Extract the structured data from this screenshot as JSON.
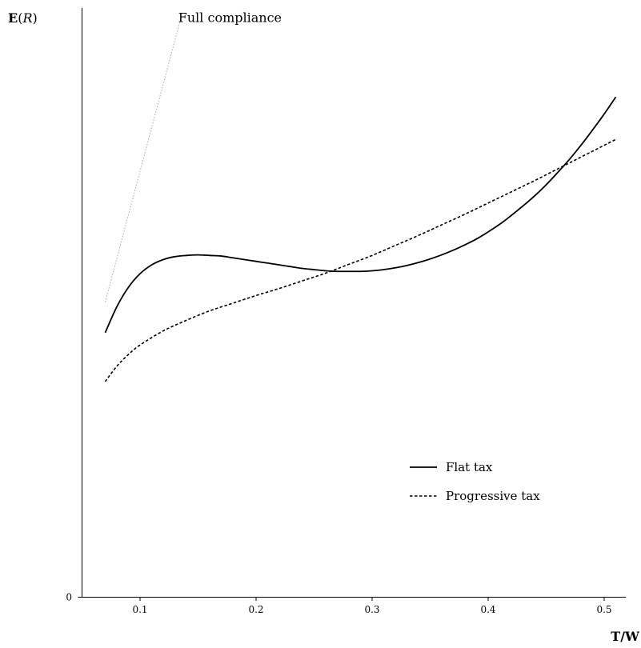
{
  "chart_data": {
    "type": "line",
    "title": "",
    "xlabel": {
      "bold": "T/W",
      "text": "T/W"
    },
    "ylabel": {
      "bold": "E",
      "italic": "R",
      "text": "E(R)"
    },
    "xlim": [
      0.05,
      0.525
    ],
    "ylim": [
      0,
      1.0
    ],
    "xticks": [
      0.1,
      0.2,
      0.3,
      0.4,
      0.5
    ],
    "xtick_labels": [
      "0.1",
      "0.2",
      "0.3",
      "0.4",
      "0.5"
    ],
    "yticks": [
      0
    ],
    "ytick_labels": [
      "0"
    ],
    "grid": false,
    "legend": "bottom-right",
    "series": [
      {
        "name": "Flat tax",
        "style": "solid",
        "color": "#000000",
        "x": [
          0.07,
          0.08,
          0.09,
          0.1,
          0.11,
          0.12,
          0.13,
          0.14,
          0.15,
          0.16,
          0.17,
          0.18,
          0.19,
          0.2,
          0.21,
          0.22,
          0.23,
          0.24,
          0.25,
          0.26,
          0.27,
          0.28,
          0.29,
          0.3,
          0.31,
          0.32,
          0.33,
          0.34,
          0.35,
          0.36,
          0.37,
          0.38,
          0.39,
          0.4,
          0.41,
          0.42,
          0.43,
          0.44,
          0.45,
          0.46,
          0.47,
          0.48,
          0.49,
          0.5,
          0.51
        ],
        "y": [
          0.449,
          0.493,
          0.526,
          0.549,
          0.564,
          0.573,
          0.578,
          0.58,
          0.581,
          0.58,
          0.579,
          0.576,
          0.573,
          0.57,
          0.567,
          0.564,
          0.561,
          0.558,
          0.556,
          0.554,
          0.553,
          0.553,
          0.553,
          0.554,
          0.556,
          0.559,
          0.563,
          0.568,
          0.574,
          0.581,
          0.589,
          0.598,
          0.608,
          0.62,
          0.633,
          0.648,
          0.664,
          0.681,
          0.7,
          0.721,
          0.743,
          0.767,
          0.793,
          0.82,
          0.849
        ]
      },
      {
        "name": "Progressive tax",
        "style": "dashed",
        "color": "#000000",
        "x": [
          0.07,
          0.08,
          0.09,
          0.1,
          0.12,
          0.14,
          0.16,
          0.18,
          0.2,
          0.22,
          0.24,
          0.26,
          0.28,
          0.3,
          0.32,
          0.34,
          0.36,
          0.38,
          0.4,
          0.42,
          0.44,
          0.46,
          0.48,
          0.5,
          0.51
        ],
        "y": [
          0.366,
          0.392,
          0.412,
          0.428,
          0.452,
          0.47,
          0.486,
          0.499,
          0.512,
          0.524,
          0.537,
          0.55,
          0.565,
          0.58,
          0.597,
          0.614,
          0.632,
          0.65,
          0.669,
          0.688,
          0.707,
          0.727,
          0.747,
          0.767,
          0.777
        ]
      },
      {
        "name": "Full compliance",
        "style": "dotted",
        "color": "#aaaaaa",
        "x": [
          0.07,
          0.135
        ],
        "y": [
          0.501,
          0.982
        ]
      }
    ],
    "annotations": [
      {
        "text": "Full compliance",
        "x": 0.135,
        "y": 0.982
      }
    ]
  }
}
